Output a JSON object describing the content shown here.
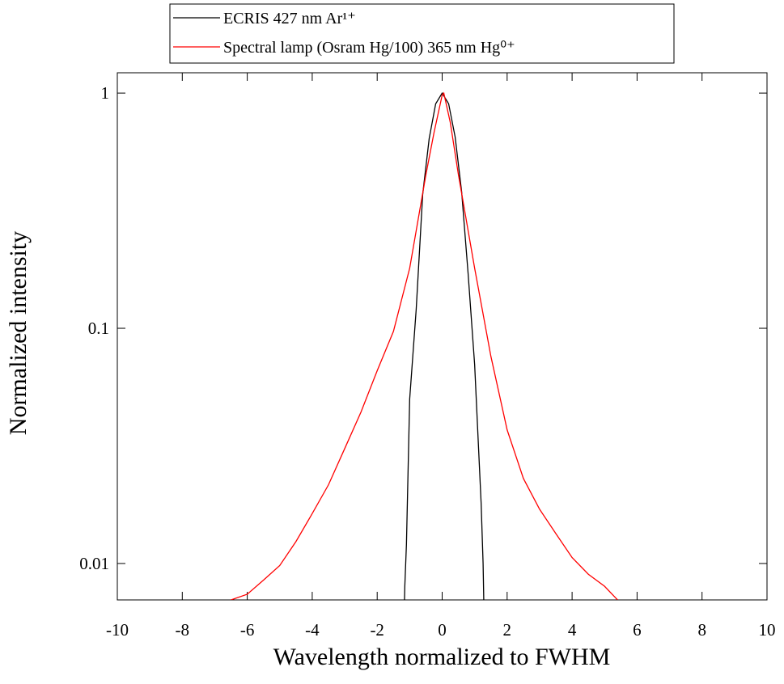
{
  "chart_data": {
    "type": "line",
    "xlabel": "Wavelength normalized to FWHM",
    "ylabel": "Normalized intensity",
    "xlim": [
      -10,
      10
    ],
    "xticks": [
      -10,
      -8,
      -6,
      -4,
      -2,
      0,
      2,
      4,
      6,
      8,
      10
    ],
    "ylim": [
      0.007,
      1.22
    ],
    "yticks": [
      0.01,
      0.1,
      1
    ],
    "log_y": true,
    "grid": false,
    "series": [
      {
        "name": "ECRIS 427 nm Ar¹⁺",
        "color": "#000000",
        "x": [
          -1.2,
          -1.15,
          -1.1,
          -1.0,
          -0.8,
          -0.6,
          -0.4,
          -0.2,
          0,
          0.2,
          0.4,
          0.6,
          0.8,
          1.0,
          1.2,
          1.26,
          1.3
        ],
        "values": [
          0.004,
          0.008,
          0.012,
          0.05,
          0.12,
          0.37,
          0.64,
          0.9,
          1,
          0.9,
          0.65,
          0.38,
          0.17,
          0.07,
          0.018,
          0.01,
          0.005
        ]
      },
      {
        "name": "Spectral lamp (Osram Hg/100) 365 nm Hg⁰⁺",
        "color": "#ff0000",
        "x": [
          -6.5,
          -6,
          -5.5,
          -5,
          -4.5,
          -4,
          -3.5,
          -3,
          -2.5,
          -2,
          -1.5,
          -1,
          -0.5,
          -0.25,
          0,
          0.05,
          0.25,
          0.5,
          1,
          1.5,
          2,
          2.5,
          3,
          3.5,
          4,
          4.5,
          5,
          5.4
        ],
        "values": [
          0.007,
          0.0074,
          0.0085,
          0.0098,
          0.0124,
          0.0163,
          0.0216,
          0.0308,
          0.044,
          0.066,
          0.097,
          0.18,
          0.45,
          0.68,
          0.98,
          1,
          0.75,
          0.45,
          0.18,
          0.076,
          0.037,
          0.023,
          0.017,
          0.0134,
          0.0106,
          0.009,
          0.008,
          0.007
        ]
      }
    ]
  }
}
